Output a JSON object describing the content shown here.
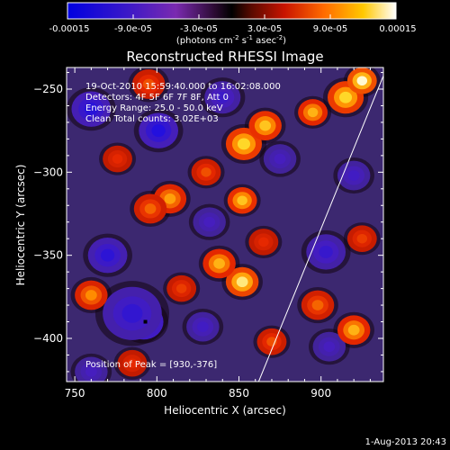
{
  "colorbar": {
    "tick_labels": [
      "-0.00015",
      "-9.0e-05",
      "-3.0e-05",
      "3.0e-05",
      "9.0e-05",
      "0.00015"
    ],
    "unit_prefix": "(photons cm",
    "unit_exp1": "-2",
    "unit_mid": " s",
    "unit_exp2": "-1",
    "unit_mid2": " asec",
    "unit_exp3": "-2",
    "unit_suffix": ")",
    "range": [
      -0.00015,
      0.00015
    ]
  },
  "chart_data": {
    "type": "heatmap",
    "title": "Reconstructed RHESSI Image",
    "xlabel": "Heliocentric X (arcsec)",
    "ylabel": "Heliocentric Y (arcsec)",
    "xlim": [
      745,
      938
    ],
    "ylim": [
      -426,
      -237
    ],
    "x_ticks": [
      750,
      800,
      850,
      900
    ],
    "y_ticks": [
      -250,
      -300,
      -350,
      -400
    ],
    "x_tick_labels": [
      "750",
      "800",
      "850",
      "900"
    ],
    "y_tick_labels": [
      "−250",
      "−300",
      "−350",
      "−400"
    ],
    "annotations": [
      "19-Oct-2010 15:59:40.000 to 16:02:08.000",
      "Detectors: 4F 5F 6F 7F 8F, Att 0",
      "Energy Range: 25.0 - 50.0 keV",
      "Clean    Total counts: 3.02E+03"
    ],
    "peak_text": "Position of Peak = [930,-376]",
    "limb_line": [
      [
        862,
        -426
      ],
      [
        938,
        -242
      ]
    ],
    "marker": [
      793,
      -390
    ],
    "blobs": [
      {
        "x": 792,
        "y": -390,
        "v": -1.0,
        "s": 12
      },
      {
        "x": 785,
        "y": -385,
        "v": -0.7,
        "s": 18
      },
      {
        "x": 801,
        "y": -275,
        "v": -0.85,
        "s": 12
      },
      {
        "x": 760,
        "y": -262,
        "v": -0.8,
        "s": 12
      },
      {
        "x": 770,
        "y": -350,
        "v": -0.75,
        "s": 12
      },
      {
        "x": 840,
        "y": -255,
        "v": -0.6,
        "s": 11
      },
      {
        "x": 903,
        "y": -348,
        "v": -0.65,
        "s": 12
      },
      {
        "x": 920,
        "y": -302,
        "v": -0.55,
        "s": 10
      },
      {
        "x": 828,
        "y": -393,
        "v": -0.55,
        "s": 10
      },
      {
        "x": 875,
        "y": -292,
        "v": -0.5,
        "s": 10
      },
      {
        "x": 905,
        "y": -405,
        "v": -0.5,
        "s": 10
      },
      {
        "x": 832,
        "y": -330,
        "v": -0.5,
        "s": 10
      },
      {
        "x": 760,
        "y": -420,
        "v": -0.5,
        "s": 10
      },
      {
        "x": 853,
        "y": -283,
        "v": 0.9,
        "s": 11
      },
      {
        "x": 866,
        "y": -272,
        "v": 0.85,
        "s": 10
      },
      {
        "x": 852,
        "y": -366,
        "v": 0.95,
        "s": 10
      },
      {
        "x": 838,
        "y": -355,
        "v": 0.8,
        "s": 10
      },
      {
        "x": 852,
        "y": -317,
        "v": 0.85,
        "s": 9
      },
      {
        "x": 808,
        "y": -316,
        "v": 0.75,
        "s": 10
      },
      {
        "x": 796,
        "y": -322,
        "v": 0.6,
        "s": 10
      },
      {
        "x": 915,
        "y": -255,
        "v": 0.9,
        "s": 11
      },
      {
        "x": 925,
        "y": -245,
        "v": 1.0,
        "s": 9
      },
      {
        "x": 895,
        "y": -264,
        "v": 0.8,
        "s": 9
      },
      {
        "x": 920,
        "y": -395,
        "v": 0.8,
        "s": 10
      },
      {
        "x": 898,
        "y": -380,
        "v": 0.6,
        "s": 10
      },
      {
        "x": 760,
        "y": -374,
        "v": 0.7,
        "s": 10
      },
      {
        "x": 795,
        "y": -247,
        "v": 0.55,
        "s": 10
      },
      {
        "x": 815,
        "y": -370,
        "v": 0.5,
        "s": 9
      },
      {
        "x": 870,
        "y": -402,
        "v": 0.55,
        "s": 9
      },
      {
        "x": 776,
        "y": -292,
        "v": 0.45,
        "s": 9
      },
      {
        "x": 925,
        "y": -340,
        "v": 0.5,
        "s": 9
      },
      {
        "x": 830,
        "y": -300,
        "v": 0.55,
        "s": 9
      },
      {
        "x": 865,
        "y": -342,
        "v": 0.45,
        "s": 9
      },
      {
        "x": 785,
        "y": -415,
        "v": 0.45,
        "s": 9
      }
    ]
  },
  "footer": {
    "timestamp": "1-Aug-2013 20:43"
  }
}
